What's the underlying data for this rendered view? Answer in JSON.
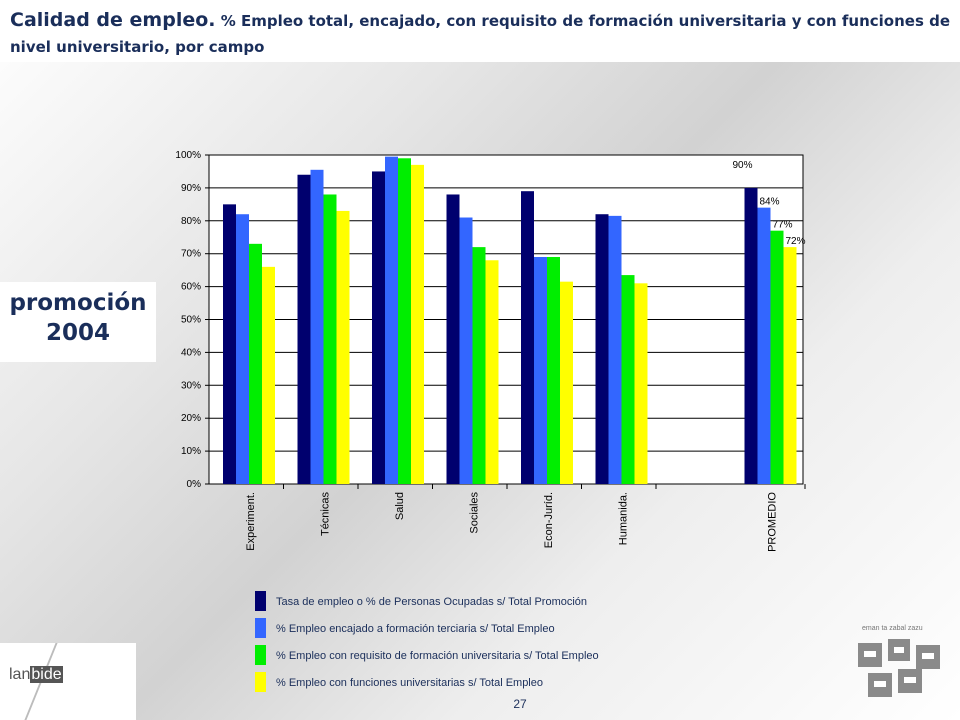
{
  "header": {
    "title_main": "Calidad de empleo.",
    "title_sub": " % Empleo total, encajado, con requisito de formación universitaria y con funciones de nivel universitario, por campo"
  },
  "promo": {
    "line1": "promoción",
    "line2": "2004"
  },
  "colors": {
    "series": [
      "#00006e",
      "#3366ff",
      "#00ee00",
      "#ffff00"
    ],
    "text": "#1a2e5a"
  },
  "chart_data": {
    "type": "bar",
    "categories": [
      "Experiment.",
      "Técnicas",
      "Salud",
      "Sociales",
      "Econ-Juríd.",
      "Humanida.",
      "PROMEDIO"
    ],
    "series": [
      {
        "name": "Tasa de empleo o % de Personas Ocupadas  s/ Total Promoción",
        "values": [
          85,
          94,
          95,
          88,
          89,
          82,
          90
        ]
      },
      {
        "name": "% Empleo encajado a formación terciaria s/ Total Empleo",
        "values": [
          82,
          95.5,
          99.5,
          81,
          69,
          81.5,
          84
        ]
      },
      {
        "name": "% Empleo con requisito de formación universitaria  s/ Total Empleo",
        "values": [
          73,
          88,
          99,
          72,
          69,
          63.5,
          77
        ]
      },
      {
        "name": "% Empleo con funciones universitarias s/ Total Empleo",
        "values": [
          66,
          83,
          97,
          68,
          61.5,
          61,
          72
        ]
      }
    ],
    "data_labels": {
      "PROMEDIO": [
        "90%",
        "84%",
        "77%",
        "72%"
      ]
    },
    "ylim": [
      0,
      100
    ],
    "yticks": [
      "0%",
      "10%",
      "20%",
      "30%",
      "40%",
      "50%",
      "60%",
      "70%",
      "80%",
      "90%",
      "100%"
    ],
    "grid": true
  },
  "legend": [
    "Tasa de empleo o % de Personas Ocupadas  s/ Total Promoción",
    "% Empleo encajado a formación terciaria s/ Total Empleo",
    "% Empleo con requisito de formación universitaria  s/ Total Empleo",
    "% Empleo con funciones universitarias s/ Total Empleo"
  ],
  "footer": {
    "logo_left_a": "lan",
    "logo_left_b": "bide",
    "page_number": "27",
    "logo_right_tag": "eman ta zabal zazu"
  }
}
